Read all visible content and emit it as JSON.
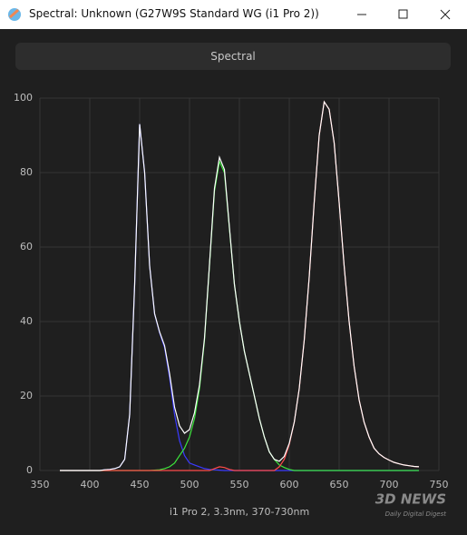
{
  "window": {
    "title": "Spectral: Unknown (G27W9S Standard WG (i1 Pro 2))"
  },
  "button": "Spectral",
  "watermark": {
    "brand": "3D NEWS",
    "tagline": "Daily Digital Digest"
  },
  "chart_data": {
    "type": "line",
    "xlabel": "i1 Pro 2, 3.3nm, 370-730nm",
    "x": [
      370,
      375,
      380,
      385,
      390,
      395,
      400,
      405,
      410,
      415,
      420,
      425,
      430,
      435,
      440,
      445,
      450,
      455,
      460,
      465,
      470,
      475,
      480,
      485,
      490,
      495,
      500,
      505,
      510,
      515,
      520,
      525,
      530,
      535,
      540,
      545,
      550,
      555,
      560,
      565,
      570,
      575,
      580,
      585,
      590,
      595,
      600,
      605,
      610,
      615,
      620,
      625,
      630,
      635,
      640,
      645,
      650,
      655,
      660,
      665,
      670,
      675,
      680,
      685,
      690,
      695,
      700,
      705,
      710,
      715,
      720,
      725,
      730
    ],
    "series": [
      {
        "color": "#3a3aff",
        "values": [
          0,
          0,
          0,
          0,
          0,
          0,
          0,
          0,
          0,
          0.2,
          0.3,
          0.5,
          1,
          3,
          15,
          50,
          93,
          80,
          55,
          42,
          37,
          33,
          25,
          15,
          8,
          4,
          2,
          1.5,
          1,
          0.5,
          0.3,
          0.2,
          0.1,
          0,
          0,
          0,
          0,
          0,
          0,
          0,
          0,
          0,
          0,
          0,
          0,
          0,
          0,
          0,
          0,
          0,
          0,
          0,
          0,
          0,
          0,
          0,
          0,
          0,
          0,
          0,
          0,
          0,
          0,
          0,
          0,
          0,
          0,
          0,
          0,
          0,
          0,
          0,
          0
        ]
      },
      {
        "color": "#3ce63c",
        "values": [
          0,
          0,
          0,
          0,
          0,
          0,
          0,
          0,
          0,
          0,
          0,
          0,
          0,
          0,
          0,
          0,
          0,
          0,
          0,
          0.1,
          0.2,
          0.5,
          1,
          2,
          4,
          6,
          9,
          14,
          22,
          35,
          55,
          75,
          83,
          80,
          65,
          50,
          40,
          32,
          26,
          20,
          14,
          9,
          5,
          3,
          1.5,
          0.8,
          0.3,
          0,
          0,
          0,
          0,
          0,
          0,
          0,
          0,
          0,
          0,
          0,
          0,
          0,
          0,
          0,
          0,
          0,
          0,
          0,
          0,
          0,
          0,
          0,
          0,
          0,
          0
        ]
      },
      {
        "color": "#ff4a4a",
        "values": [
          0,
          0,
          0,
          0,
          0,
          0,
          0,
          0,
          0,
          0,
          0,
          0,
          0,
          0,
          0,
          0,
          0,
          0,
          0,
          0,
          0,
          0,
          0,
          0,
          0,
          0,
          0,
          0,
          0,
          0,
          0,
          0.5,
          1,
          0.8,
          0.3,
          0,
          0,
          0,
          0,
          0,
          0,
          0,
          0,
          0,
          1,
          3,
          7,
          13,
          22,
          35,
          52,
          72,
          90,
          99,
          97,
          88,
          72,
          55,
          40,
          28,
          19,
          13,
          9,
          6,
          4.5,
          3.5,
          2.8,
          2.2,
          1.8,
          1.5,
          1.3,
          1.1,
          1
        ]
      },
      {
        "color": "#ffffff",
        "values": [
          0,
          0,
          0,
          0,
          0,
          0,
          0,
          0,
          0,
          0.2,
          0.3,
          0.5,
          1,
          3,
          15,
          50,
          93,
          80,
          55,
          42.1,
          37.2,
          33.5,
          26,
          17,
          12,
          10,
          11,
          15.5,
          23,
          35.5,
          55.3,
          75.7,
          84.1,
          80.8,
          65.3,
          50,
          40,
          32,
          26,
          20,
          14,
          9,
          5,
          3,
          2.5,
          3.8,
          7.3,
          13,
          22,
          35,
          52,
          72,
          90,
          99,
          97,
          88,
          72,
          55,
          40,
          28,
          19,
          13,
          9,
          6,
          4.5,
          3.5,
          2.8,
          2.2,
          1.8,
          1.5,
          1.3,
          1.1,
          1
        ]
      }
    ],
    "xlim": [
      350,
      750
    ],
    "xticks": [
      350,
      400,
      450,
      500,
      550,
      600,
      650,
      700,
      750
    ],
    "ylim": [
      0,
      100
    ],
    "yticks": [
      0,
      20,
      40,
      60,
      80,
      100
    ],
    "grid": true
  }
}
